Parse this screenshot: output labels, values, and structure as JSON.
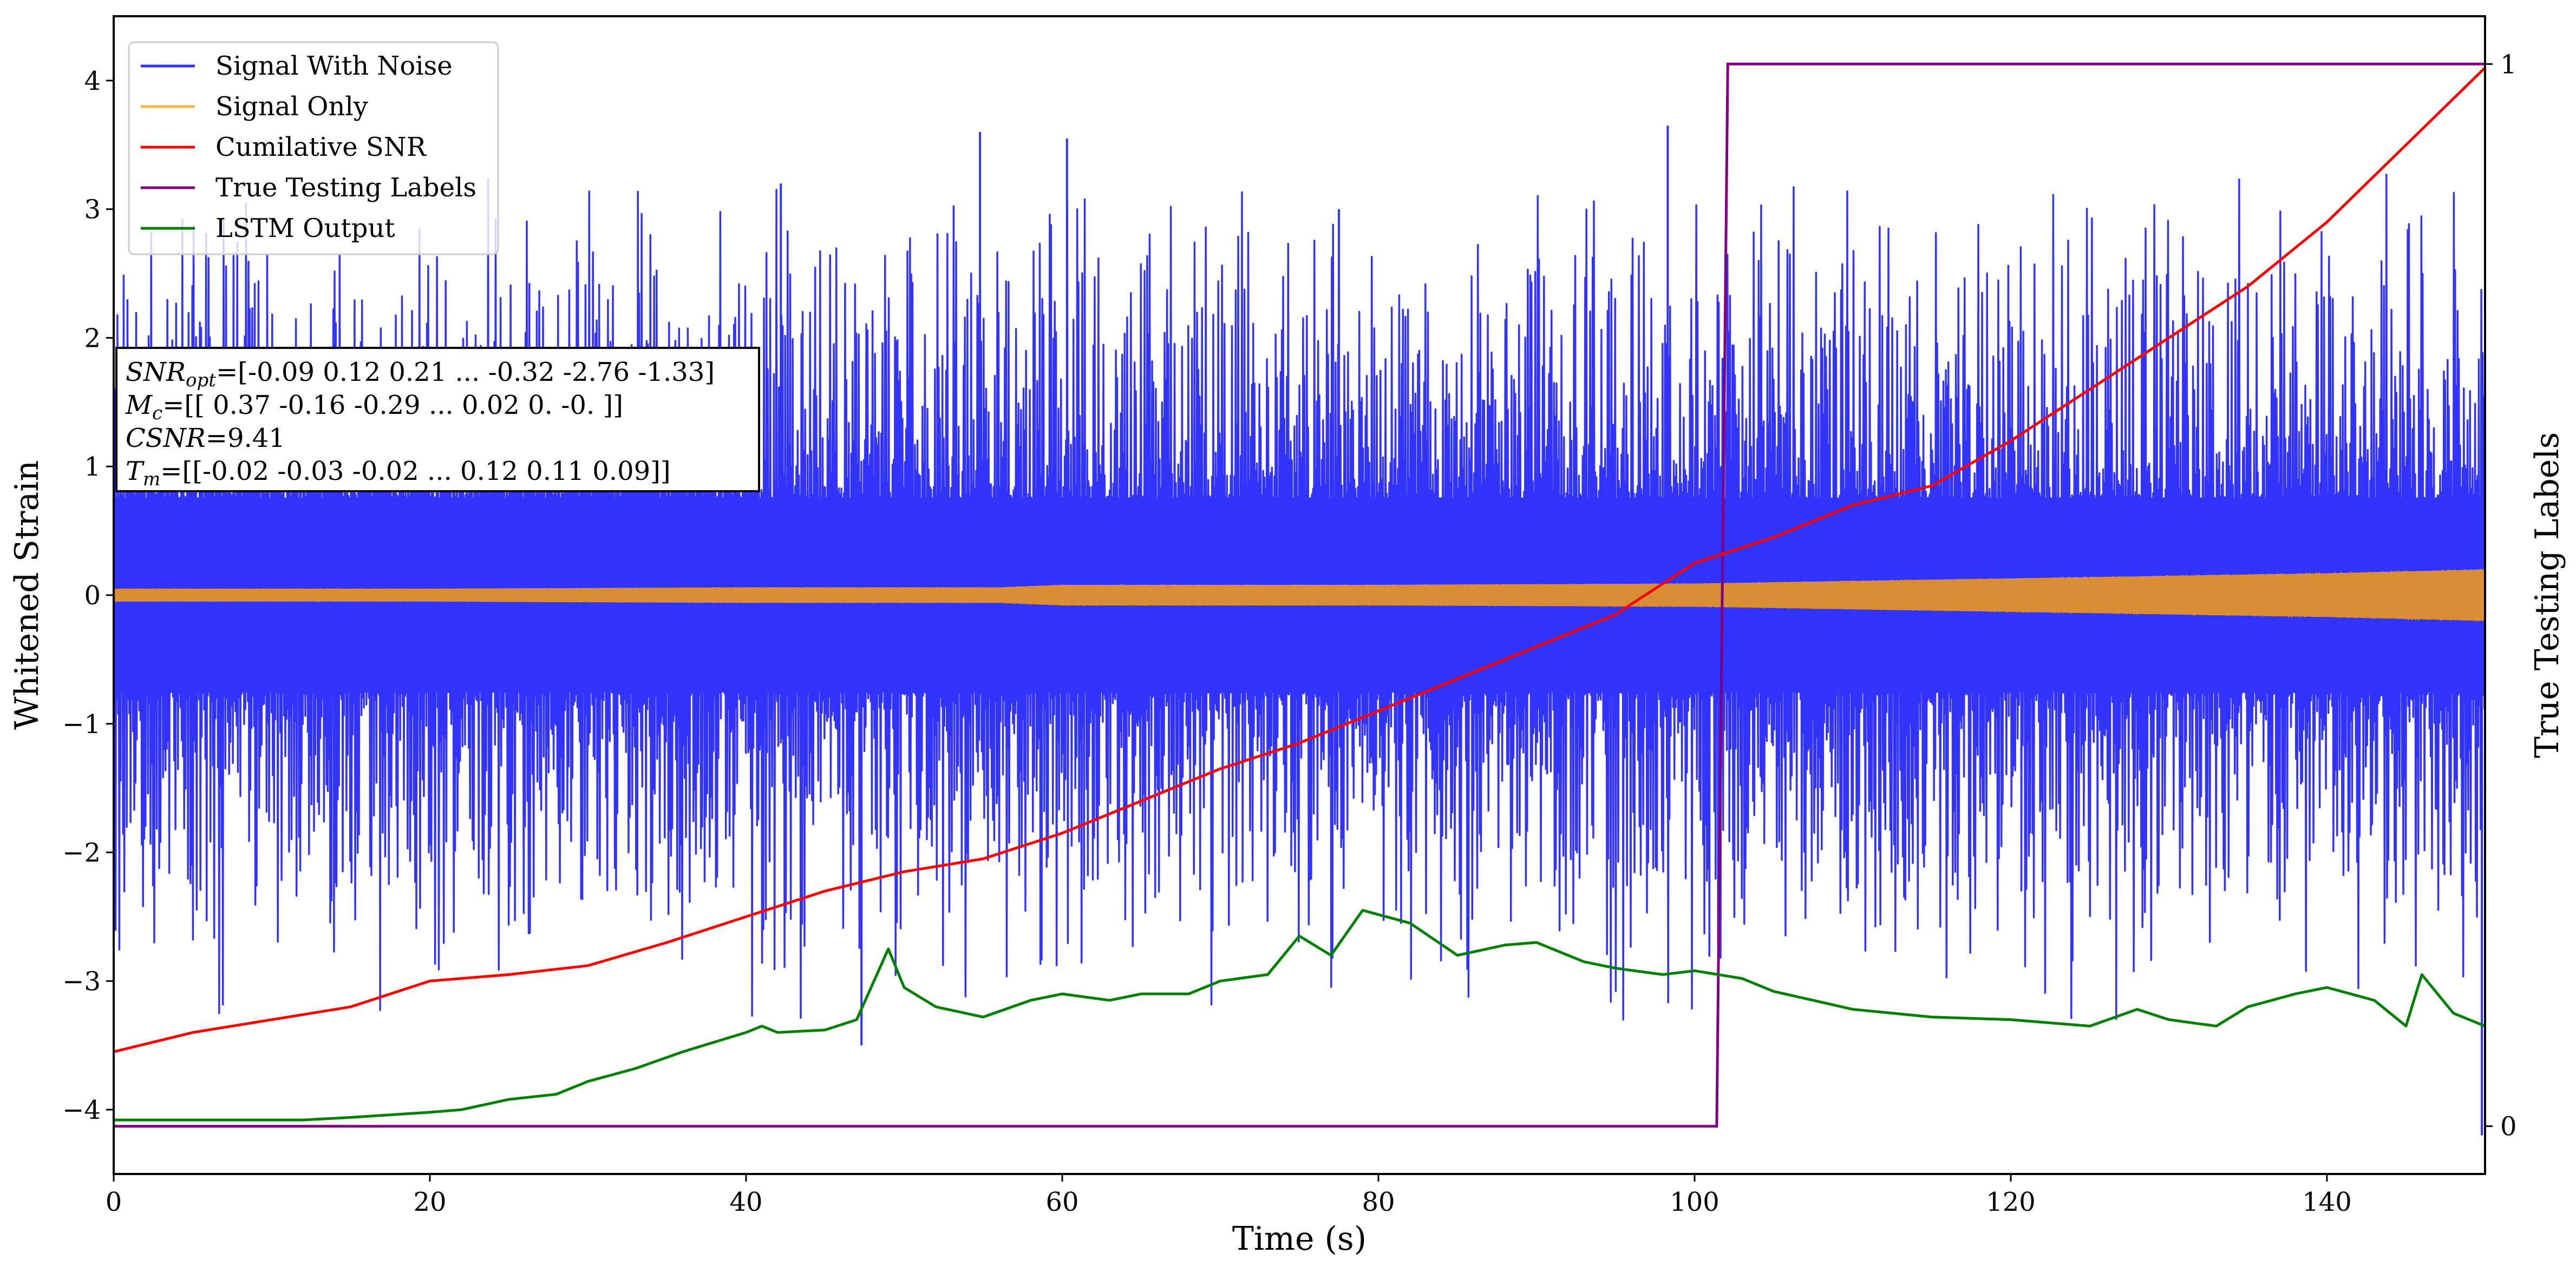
{
  "chart_data": {
    "type": "line",
    "xlabel": "Time (s)",
    "ylabel": "Whitened Strain",
    "y2label": "True Testing Labels",
    "xlim": [
      0,
      150
    ],
    "ylim": [
      -4.5,
      4.5
    ],
    "y2lim": [
      -0.045,
      1.045
    ],
    "x_ticks": [
      0,
      20,
      40,
      60,
      80,
      100,
      120,
      140
    ],
    "y_ticks": [
      -4,
      -3,
      -2,
      -1,
      0,
      1,
      2,
      3,
      4
    ],
    "y2_ticks": [
      0,
      1
    ],
    "grid": false,
    "legend_position": "top-left",
    "series": [
      {
        "name": "Signal With Noise",
        "color": "#3333ff",
        "band_half_width": 0.75,
        "noise_amplitude": 2.5,
        "spike_examples": [
          {
            "x": 54.8,
            "y": 3.6
          },
          {
            "x": 60.3,
            "y": 3.55
          },
          {
            "x": 98.3,
            "y": 3.65
          },
          {
            "x": 149.8,
            "y": -4.2
          },
          {
            "x": 42.2,
            "y": 3.2
          },
          {
            "x": 77.5,
            "y": 3.0
          },
          {
            "x": 47.3,
            "y": -3.5
          }
        ]
      },
      {
        "name": "Signal Only",
        "color": "#d98e36",
        "envelope": {
          "x": [
            0,
            20,
            40,
            56,
            60,
            80,
            100,
            110,
            120,
            140,
            150
          ],
          "y": [
            0.05,
            0.05,
            0.06,
            0.06,
            0.08,
            0.08,
            0.09,
            0.11,
            0.13,
            0.17,
            0.2
          ]
        }
      },
      {
        "name": "Cumilative SNR",
        "color": "#ff0000",
        "x": [
          0,
          5,
          10,
          15,
          20,
          25,
          30,
          35,
          40,
          45,
          50,
          55,
          60,
          65,
          70,
          75,
          80,
          85,
          90,
          95,
          100,
          105,
          110,
          115,
          120,
          125,
          130,
          135,
          140,
          145,
          150
        ],
        "y": [
          -3.55,
          -3.4,
          -3.3,
          -3.2,
          -3.0,
          -2.95,
          -2.88,
          -2.7,
          -2.5,
          -2.3,
          -2.15,
          -2.05,
          -1.85,
          -1.6,
          -1.35,
          -1.15,
          -0.9,
          -0.65,
          -0.4,
          -0.15,
          0.25,
          0.45,
          0.7,
          0.85,
          1.2,
          1.6,
          2.0,
          2.4,
          2.9,
          3.5,
          4.1
        ]
      },
      {
        "name": "True Testing Labels",
        "color": "#800080",
        "axis": "right",
        "x": [
          0,
          101.4,
          102.1,
          150
        ],
        "y": [
          0,
          0,
          1,
          1
        ]
      },
      {
        "name": "LSTM Output",
        "color": "#008000",
        "x": [
          0,
          12,
          15,
          20,
          22,
          25,
          28,
          30,
          33,
          36,
          40,
          41,
          42,
          45,
          47,
          49,
          50,
          52,
          55,
          58,
          60,
          63,
          65,
          68,
          70,
          73,
          75,
          77,
          79,
          82,
          85,
          88,
          90,
          93,
          95,
          98,
          100,
          103,
          105,
          110,
          115,
          120,
          125,
          128,
          130,
          133,
          135,
          138,
          140,
          143,
          145,
          146,
          148,
          150
        ],
        "y": [
          -4.08,
          -4.08,
          -4.06,
          -4.02,
          -4.0,
          -3.92,
          -3.88,
          -3.78,
          -3.68,
          -3.55,
          -3.4,
          -3.35,
          -3.4,
          -3.38,
          -3.3,
          -2.75,
          -3.05,
          -3.2,
          -3.28,
          -3.15,
          -3.1,
          -3.15,
          -3.1,
          -3.1,
          -3.0,
          -2.95,
          -2.65,
          -2.8,
          -2.45,
          -2.55,
          -2.8,
          -2.72,
          -2.7,
          -2.85,
          -2.9,
          -2.95,
          -2.92,
          -2.98,
          -3.08,
          -3.22,
          -3.28,
          -3.3,
          -3.35,
          -3.22,
          -3.3,
          -3.35,
          -3.2,
          -3.1,
          -3.05,
          -3.15,
          -3.35,
          -2.95,
          -3.25,
          -3.35
        ]
      }
    ],
    "annotation_lines": [
      {
        "label": "SNR",
        "sub": "opt",
        "value": "=[-0.09  0.12  0.21 ... -0.32 -2.76 -1.33]"
      },
      {
        "label": "M",
        "sub": "c",
        "value": "=[[ 0.37 -0.16 -0.29 ...  0.02  0.   -0.  ]]"
      },
      {
        "label": "CSNR",
        "sub": "",
        "value": "=9.41"
      },
      {
        "label": "T",
        "sub": "m",
        "value": "=[[-0.02 -0.03 -0.02 ...  0.12  0.11  0.09]]"
      }
    ]
  }
}
